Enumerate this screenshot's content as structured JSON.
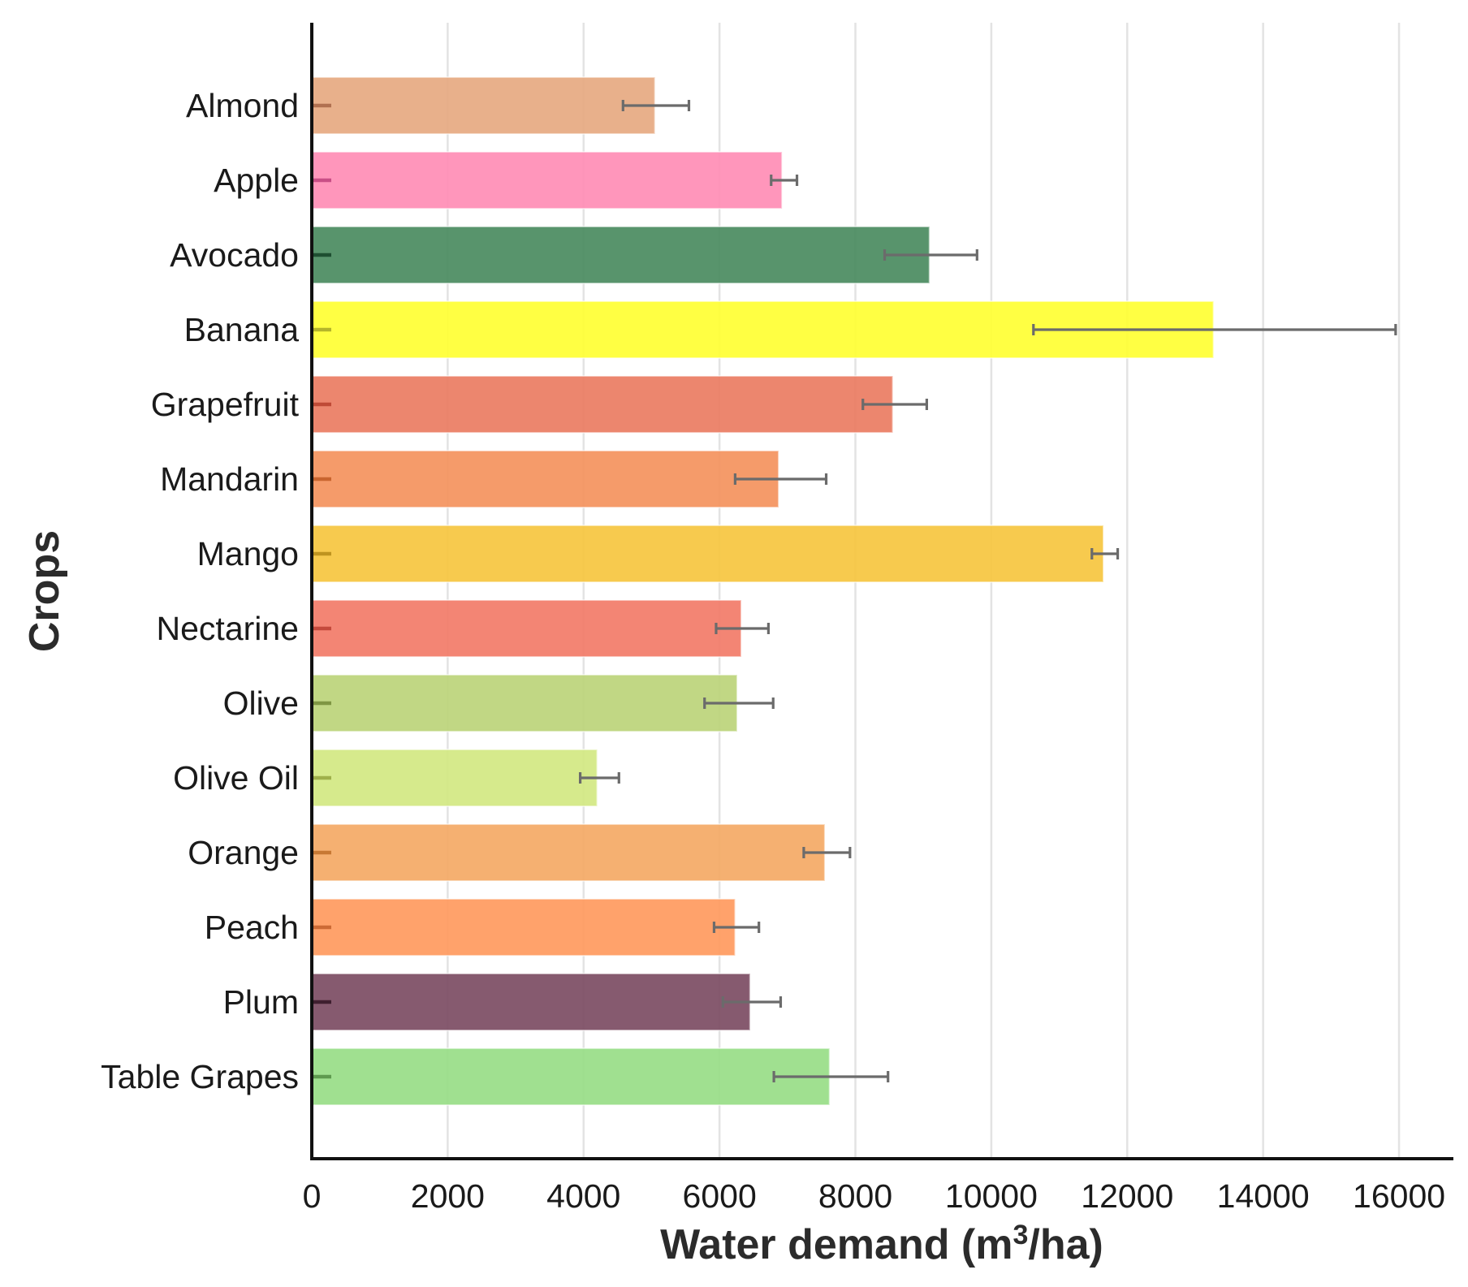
{
  "chart_data": {
    "type": "bar",
    "orientation": "horizontal",
    "xlabel_main": "Water demand (m",
    "xlabel_sup": "3",
    "xlabel_tail": "/ha)",
    "ylabel": "Crops",
    "xlim": [
      0,
      16800
    ],
    "xticks": [
      0,
      2000,
      4000,
      6000,
      8000,
      10000,
      12000,
      14000,
      16000
    ],
    "grid": "vertical",
    "categories": [
      "Almond",
      "Apple",
      "Avocado",
      "Banana",
      "Grapefruit",
      "Mandarin",
      "Mango",
      "Nectarine",
      "Olive",
      "Olive Oil",
      "Orange",
      "Peach",
      "Plum",
      "Table Grapes"
    ],
    "values": [
      5050,
      6920,
      9090,
      13270,
      8550,
      6870,
      11650,
      6320,
      6260,
      4200,
      7550,
      6230,
      6450,
      7620
    ],
    "error_low": [
      4580,
      6760,
      8430,
      10620,
      8110,
      6230,
      11480,
      5950,
      5780,
      3950,
      7240,
      5920,
      6050,
      6800
    ],
    "error_high": [
      5550,
      7140,
      9790,
      15950,
      9050,
      7570,
      11860,
      6720,
      6790,
      4520,
      7920,
      6580,
      6900,
      8480
    ],
    "colors": [
      "#e6a981",
      "#ff8db5",
      "#4a8b5f",
      "#ffff33",
      "#ea7c62",
      "#f4935d",
      "#f6c63f",
      "#f27b68",
      "#bcd47a",
      "#d2e882",
      "#f4a965",
      "#ff9a5e",
      "#7c4c63",
      "#98dd87"
    ],
    "tick_mark_colors": [
      "#b07050",
      "#c94f86",
      "#1e4f31",
      "#b5b52a",
      "#bf4a36",
      "#c9652f",
      "#bf9420",
      "#c44a3c",
      "#7f9643",
      "#9fb04b",
      "#c77934",
      "#cc6a35",
      "#3f1f2f",
      "#5e9a4f"
    ]
  }
}
